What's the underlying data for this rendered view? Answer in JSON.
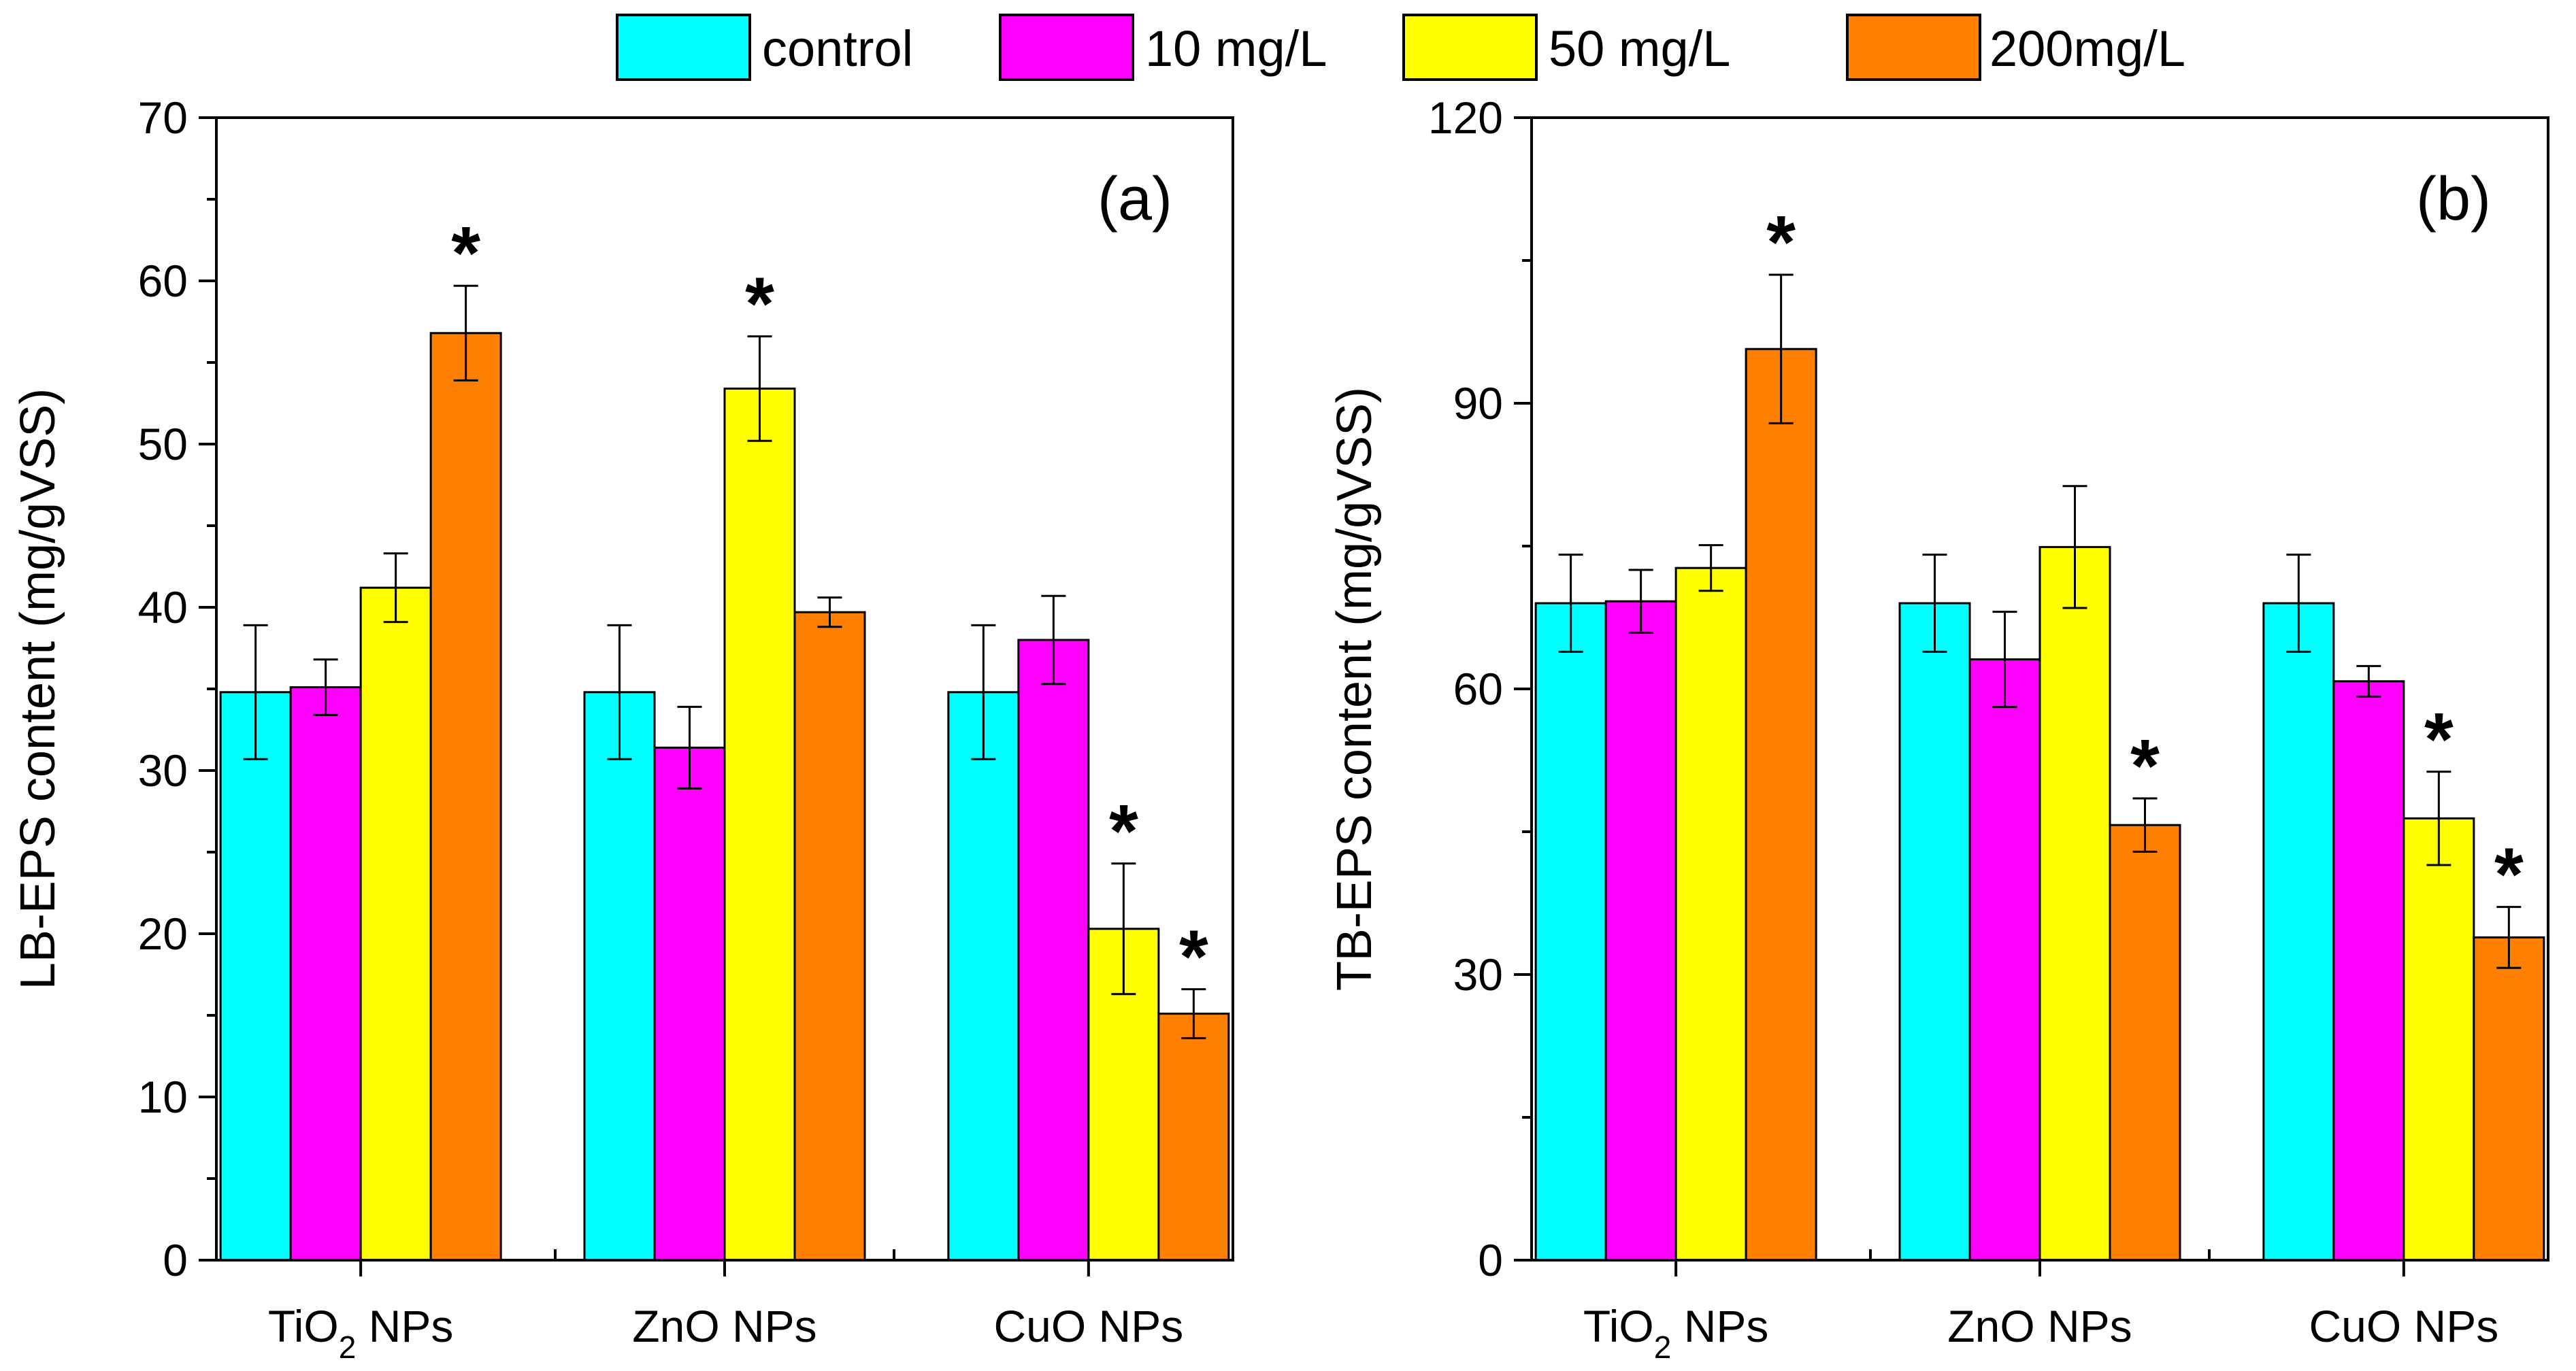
{
  "legend": [
    {
      "label": "control",
      "color": "#00ffff"
    },
    {
      "label": "10 mg/L",
      "color": "#ff00ff"
    },
    {
      "label": "50 mg/L",
      "color": "#ffff00"
    },
    {
      "label": "200mg/L",
      "color": "#ff7f00"
    }
  ],
  "chart_data": [
    {
      "type": "bar",
      "panel_label": "(a)",
      "ylabel": "LB-EPS content (mg/gVSS)",
      "xlabel": "",
      "ylim": [
        0,
        70
      ],
      "yticks": [
        0,
        10,
        20,
        30,
        40,
        50,
        60,
        70
      ],
      "minor_ticks": true,
      "categories": [
        {
          "main": "TiO",
          "sub": "2",
          "rest": " NPs"
        },
        {
          "main": "ZnO NPs",
          "sub": "",
          "rest": ""
        },
        {
          "main": "CuO NPs",
          "sub": "",
          "rest": ""
        }
      ],
      "series": [
        {
          "name": "control",
          "color": "#00ffff",
          "values": [
            34.8,
            34.8,
            34.8
          ],
          "errors": [
            4.1,
            4.1,
            4.1
          ],
          "significant": [
            false,
            false,
            false
          ]
        },
        {
          "name": "10 mg/L",
          "color": "#ff00ff",
          "values": [
            35.1,
            31.4,
            38.0
          ],
          "errors": [
            1.7,
            2.5,
            2.7
          ],
          "significant": [
            false,
            false,
            false
          ]
        },
        {
          "name": "50 mg/L",
          "color": "#ffff00",
          "values": [
            41.2,
            53.4,
            20.3
          ],
          "errors": [
            2.1,
            3.2,
            4.0
          ],
          "significant": [
            false,
            true,
            true
          ]
        },
        {
          "name": "200mg/L",
          "color": "#ff7f00",
          "values": [
            56.8,
            39.7,
            15.1
          ],
          "errors": [
            2.9,
            0.9,
            1.5
          ],
          "significant": [
            true,
            false,
            true
          ]
        }
      ],
      "significance_marker": "*"
    },
    {
      "type": "bar",
      "panel_label": "(b)",
      "ylabel": "TB-EPS content (mg/gVSS)",
      "xlabel": "",
      "ylim": [
        0,
        120
      ],
      "yticks": [
        0,
        30,
        60,
        90,
        120
      ],
      "minor_ticks": true,
      "categories": [
        {
          "main": "TiO",
          "sub": "2",
          "rest": " NPs"
        },
        {
          "main": "ZnO NPs",
          "sub": "",
          "rest": ""
        },
        {
          "main": "CuO NPs",
          "sub": "",
          "rest": ""
        }
      ],
      "series": [
        {
          "name": "control",
          "color": "#00ffff",
          "values": [
            69.0,
            69.0,
            69.0
          ],
          "errors": [
            5.1,
            5.1,
            5.1
          ],
          "significant": [
            false,
            false,
            false
          ]
        },
        {
          "name": "10 mg/L",
          "color": "#ff00ff",
          "values": [
            69.2,
            63.1,
            60.8
          ],
          "errors": [
            3.3,
            5.0,
            1.6
          ],
          "significant": [
            false,
            false,
            false
          ]
        },
        {
          "name": "50 mg/L",
          "color": "#ffff00",
          "values": [
            72.7,
            74.9,
            46.4
          ],
          "errors": [
            2.4,
            6.4,
            4.9
          ],
          "significant": [
            false,
            false,
            true
          ]
        },
        {
          "name": "200mg/L",
          "color": "#ff7f00",
          "values": [
            95.7,
            45.7,
            33.9
          ],
          "errors": [
            7.8,
            2.8,
            3.2
          ],
          "significant": [
            true,
            true,
            true
          ]
        }
      ],
      "significance_marker": "*"
    }
  ]
}
